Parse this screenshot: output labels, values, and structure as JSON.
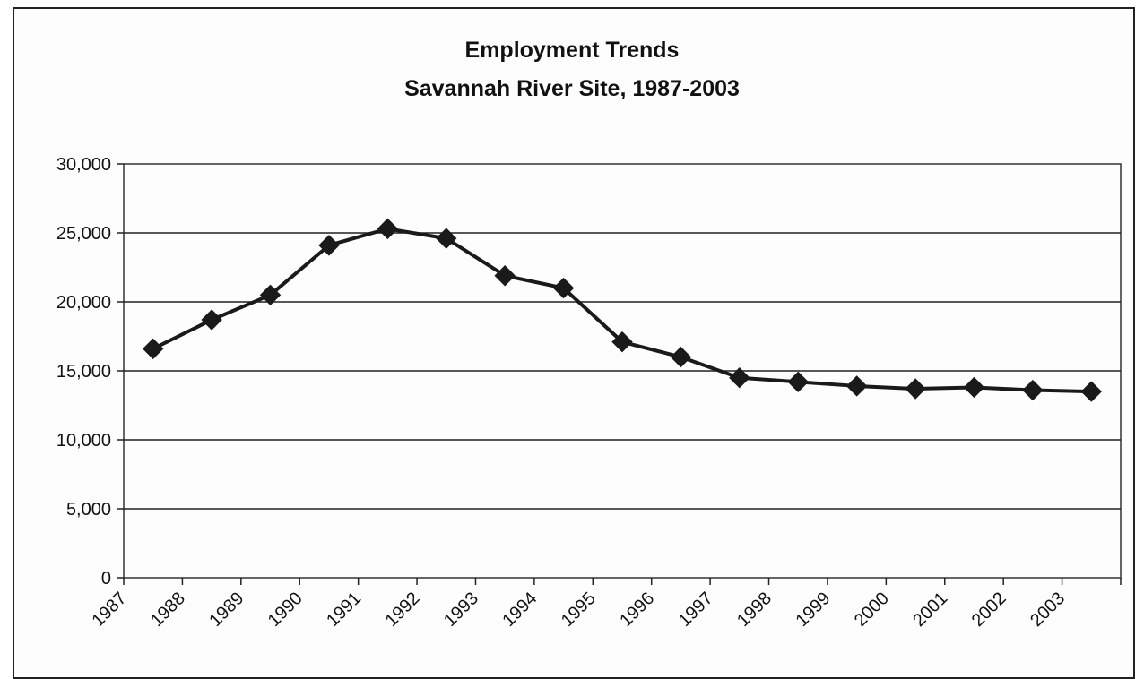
{
  "chart_data": {
    "type": "line",
    "title": "Employment Trends",
    "subtitle": "Savannah River Site, 1987-2003",
    "xlabel": "",
    "ylabel": "",
    "ylim": [
      0,
      30000
    ],
    "yticks": [
      "0",
      "5,000",
      "10,000",
      "15,000",
      "20,000",
      "25,000",
      "30,000"
    ],
    "grid": true,
    "legend": "none",
    "categories": [
      "1987",
      "1988",
      "1989",
      "1990",
      "1991",
      "1992",
      "1993",
      "1994",
      "1995",
      "1996",
      "1997",
      "1998",
      "1999",
      "2000",
      "2001",
      "2002",
      "2003"
    ],
    "series": [
      {
        "values": [
          16600,
          18700,
          20500,
          24100,
          25300,
          24600,
          21900,
          21000,
          17100,
          16000,
          14500,
          14200,
          13900,
          13700,
          13800,
          13600,
          13500
        ],
        "color": "#1a1a1a",
        "marker": "diamond"
      }
    ]
  }
}
